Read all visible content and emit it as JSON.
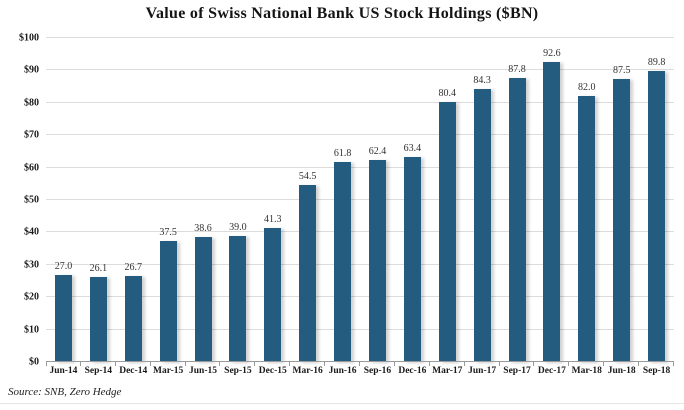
{
  "chart_data": {
    "type": "bar",
    "title": "Value of Swiss National Bank US Stock Holdings ($BN)",
    "categories": [
      "Jun-14",
      "Sep-14",
      "Dec-14",
      "Mar-15",
      "Jun-15",
      "Sep-15",
      "Dec-15",
      "Mar-16",
      "Jun-16",
      "Sep-16",
      "Dec-16",
      "Mar-17",
      "Jun-17",
      "Sep-17",
      "Dec-17",
      "Mar-18",
      "Jun-18",
      "Sep-18"
    ],
    "values": [
      27.0,
      26.1,
      26.7,
      37.5,
      38.6,
      39.0,
      41.3,
      54.5,
      61.8,
      62.4,
      63.4,
      80.4,
      84.3,
      87.8,
      92.6,
      82.0,
      87.5,
      89.8
    ],
    "value_labels": [
      "27.0",
      "26.1",
      "26.7",
      "37.5",
      "38.6",
      "39.0",
      "41.3",
      "54.5",
      "61.8",
      "62.4",
      "63.4",
      "80.4",
      "84.3",
      "87.8",
      "92.6",
      "82.0",
      "87.5",
      "89.8"
    ],
    "xlabel": "",
    "ylabel": "",
    "ylim": [
      0,
      100
    ],
    "y_tick_step": 10,
    "y_tick_labels": [
      "$0",
      "$10",
      "$20",
      "$30",
      "$40",
      "$50",
      "$60",
      "$70",
      "$80",
      "$90",
      "$100"
    ],
    "grid": true,
    "legend": false,
    "source": "Source: SNB, Zero Hedge",
    "colors": {
      "bar": "#235c7f",
      "gridline": "#dcdcdc",
      "axis": "#9a9a9a",
      "text": "#1a1a1a",
      "value_label": "#333333"
    }
  }
}
